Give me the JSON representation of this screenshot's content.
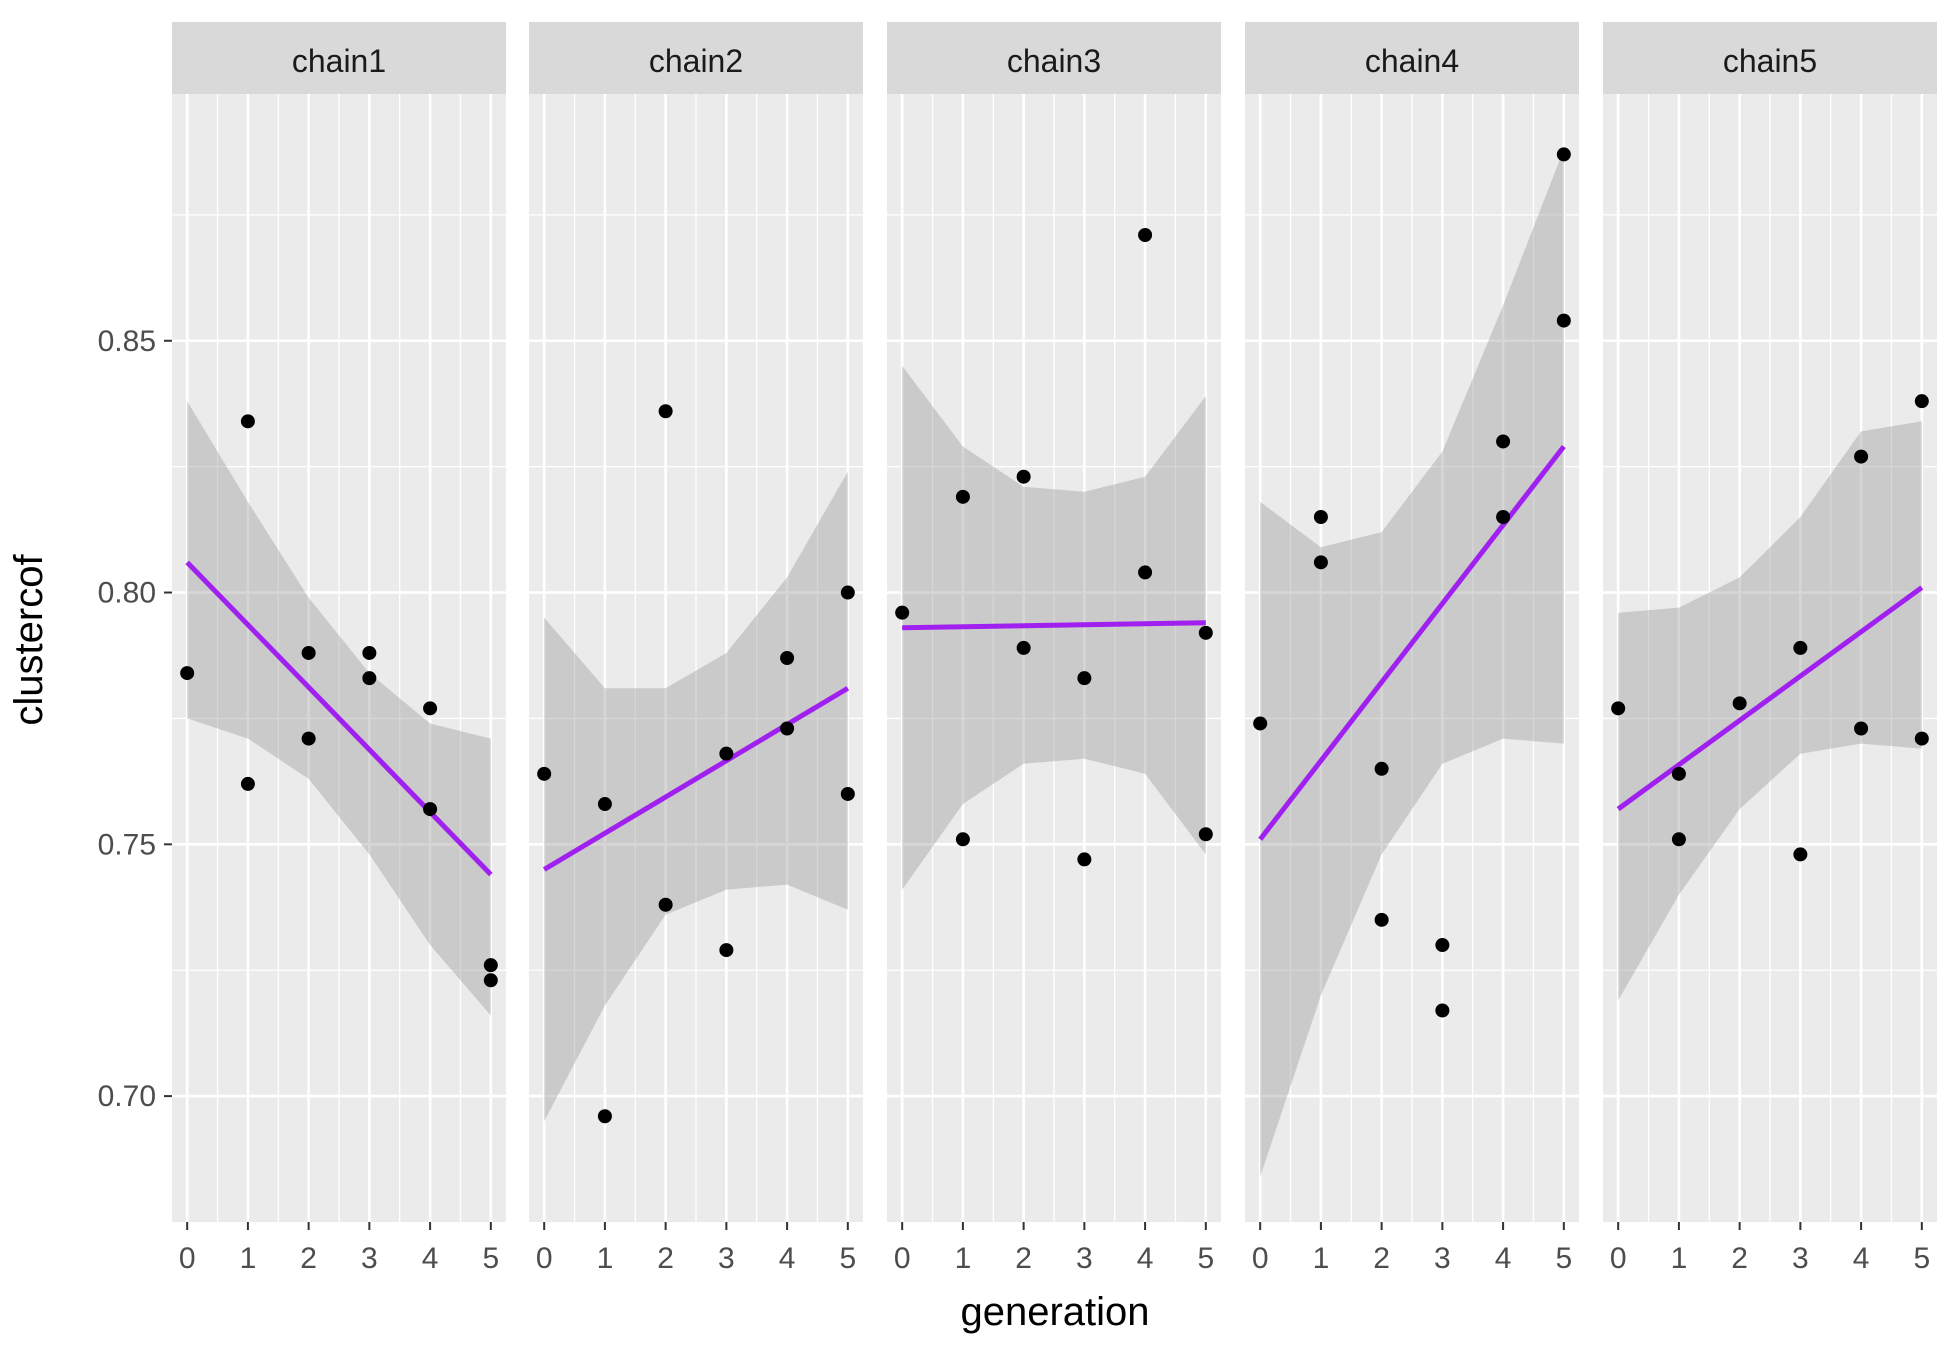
{
  "chart_data": {
    "type": "scatter",
    "facet_variable": "chain",
    "xlabel": "generation",
    "ylabel": "clustercof",
    "xlim": [
      -0.25,
      5.25
    ],
    "ylim": [
      0.675,
      0.899
    ],
    "x_ticks": [
      0,
      1,
      2,
      3,
      4,
      5
    ],
    "x_tick_labels": [
      "0",
      "1",
      "2",
      "3",
      "4",
      "5"
    ],
    "y_ticks": [
      0.7,
      0.75,
      0.8,
      0.85
    ],
    "y_tick_labels": [
      "0.70",
      "0.75",
      "0.80",
      "0.85"
    ],
    "grid": true,
    "colors": {
      "panel_background": "#ebebeb",
      "strip_background": "#d9d9d9",
      "grid": "#ffffff",
      "points": "#000000",
      "fit_line": "#a020f0",
      "confidence_band": "#999999"
    },
    "panels": [
      {
        "label": "chain1",
        "points": [
          {
            "x": 0,
            "y": 0.784
          },
          {
            "x": 1,
            "y": 0.834
          },
          {
            "x": 1,
            "y": 0.762
          },
          {
            "x": 2,
            "y": 0.788
          },
          {
            "x": 2,
            "y": 0.771
          },
          {
            "x": 3,
            "y": 0.788
          },
          {
            "x": 3,
            "y": 0.783
          },
          {
            "x": 4,
            "y": 0.777
          },
          {
            "x": 4,
            "y": 0.757
          },
          {
            "x": 5,
            "y": 0.726
          },
          {
            "x": 5,
            "y": 0.723
          }
        ],
        "fit": {
          "x0": 0,
          "y0": 0.806,
          "x1": 5,
          "y1": 0.744
        },
        "band": {
          "x": [
            0,
            1,
            2,
            3,
            4,
            5
          ],
          "lower": [
            0.775,
            0.771,
            0.763,
            0.748,
            0.73,
            0.716
          ],
          "upper": [
            0.838,
            0.818,
            0.799,
            0.784,
            0.774,
            0.771
          ]
        }
      },
      {
        "label": "chain2",
        "points": [
          {
            "x": 0,
            "y": 0.764
          },
          {
            "x": 1,
            "y": 0.758
          },
          {
            "x": 1,
            "y": 0.696
          },
          {
            "x": 2,
            "y": 0.836
          },
          {
            "x": 2,
            "y": 0.738
          },
          {
            "x": 3,
            "y": 0.768
          },
          {
            "x": 3,
            "y": 0.729
          },
          {
            "x": 4,
            "y": 0.787
          },
          {
            "x": 4,
            "y": 0.773
          },
          {
            "x": 5,
            "y": 0.8
          },
          {
            "x": 5,
            "y": 0.76
          }
        ],
        "fit": {
          "x0": 0,
          "y0": 0.745,
          "x1": 5,
          "y1": 0.781
        },
        "band": {
          "x": [
            0,
            1,
            2,
            3,
            4,
            5
          ],
          "lower": [
            0.695,
            0.718,
            0.736,
            0.741,
            0.742,
            0.737
          ],
          "upper": [
            0.795,
            0.781,
            0.781,
            0.788,
            0.803,
            0.824
          ]
        }
      },
      {
        "label": "chain3",
        "points": [
          {
            "x": 0,
            "y": 0.796
          },
          {
            "x": 1,
            "y": 0.819
          },
          {
            "x": 1,
            "y": 0.751
          },
          {
            "x": 2,
            "y": 0.823
          },
          {
            "x": 2,
            "y": 0.789
          },
          {
            "x": 3,
            "y": 0.783
          },
          {
            "x": 3,
            "y": 0.747
          },
          {
            "x": 4,
            "y": 0.871
          },
          {
            "x": 4,
            "y": 0.804
          },
          {
            "x": 5,
            "y": 0.792
          },
          {
            "x": 5,
            "y": 0.752
          }
        ],
        "fit": {
          "x0": 0,
          "y0": 0.793,
          "x1": 5,
          "y1": 0.794
        },
        "band": {
          "x": [
            0,
            1,
            2,
            3,
            4,
            5
          ],
          "lower": [
            0.741,
            0.758,
            0.766,
            0.767,
            0.764,
            0.748
          ],
          "upper": [
            0.845,
            0.829,
            0.821,
            0.82,
            0.823,
            0.839
          ]
        }
      },
      {
        "label": "chain4",
        "points": [
          {
            "x": 0,
            "y": 0.774
          },
          {
            "x": 1,
            "y": 0.815
          },
          {
            "x": 1,
            "y": 0.806
          },
          {
            "x": 2,
            "y": 0.765
          },
          {
            "x": 2,
            "y": 0.735
          },
          {
            "x": 3,
            "y": 0.73
          },
          {
            "x": 3,
            "y": 0.717
          },
          {
            "x": 4,
            "y": 0.83
          },
          {
            "x": 4,
            "y": 0.815
          },
          {
            "x": 5,
            "y": 0.887
          },
          {
            "x": 5,
            "y": 0.854
          }
        ],
        "fit": {
          "x0": 0,
          "y0": 0.751,
          "x1": 5,
          "y1": 0.829
        },
        "band": {
          "x": [
            0,
            1,
            2,
            3,
            4,
            5
          ],
          "lower": [
            0.684,
            0.72,
            0.748,
            0.766,
            0.771,
            0.77
          ],
          "upper": [
            0.818,
            0.809,
            0.812,
            0.828,
            0.857,
            0.888
          ]
        }
      },
      {
        "label": "chain5",
        "points": [
          {
            "x": 0,
            "y": 0.777
          },
          {
            "x": 1,
            "y": 0.764
          },
          {
            "x": 1,
            "y": 0.751
          },
          {
            "x": 2,
            "y": 0.778
          },
          {
            "x": 3,
            "y": 0.789
          },
          {
            "x": 3,
            "y": 0.748
          },
          {
            "x": 4,
            "y": 0.827
          },
          {
            "x": 4,
            "y": 0.773
          },
          {
            "x": 5,
            "y": 0.838
          },
          {
            "x": 5,
            "y": 0.771
          }
        ],
        "fit": {
          "x0": 0,
          "y0": 0.757,
          "x1": 5,
          "y1": 0.801
        },
        "band": {
          "x": [
            0,
            1,
            2,
            3,
            4,
            5
          ],
          "lower": [
            0.719,
            0.74,
            0.757,
            0.768,
            0.77,
            0.769
          ],
          "upper": [
            0.796,
            0.797,
            0.803,
            0.815,
            0.832,
            0.834
          ]
        }
      }
    ]
  }
}
